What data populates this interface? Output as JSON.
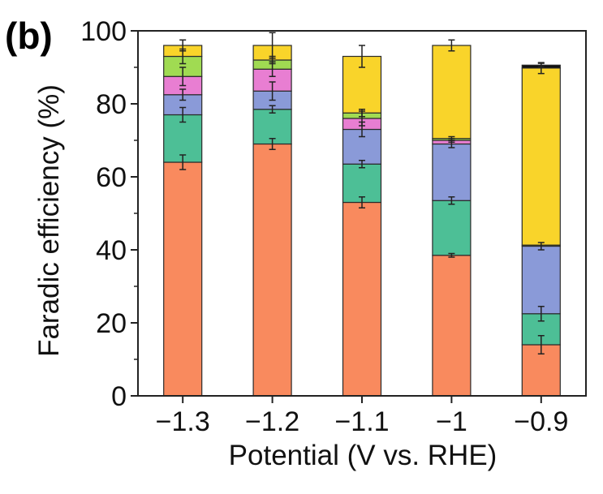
{
  "panel_label": "(b)",
  "chart_data": {
    "type": "bar",
    "stacked": true,
    "xlabel": "Potential (V vs. RHE)",
    "ylabel": "Faradic efficiency (%)",
    "ylim": [
      0,
      100
    ],
    "yticks": [
      0,
      20,
      40,
      60,
      80,
      100
    ],
    "categories": [
      "−1.3",
      "−1.2",
      "−1.1",
      "−1",
      "−0.9"
    ],
    "series": [
      {
        "color": "#f98a5e",
        "values": [
          64,
          69,
          53,
          38.5,
          14
        ],
        "errors": [
          2,
          1.5,
          1.5,
          0.5,
          2.5
        ]
      },
      {
        "color": "#4dbf96",
        "values": [
          13,
          9.5,
          10.5,
          15,
          8.5
        ],
        "errors": [
          2,
          1,
          1,
          1,
          2
        ]
      },
      {
        "color": "#8a9ad8",
        "values": [
          5.5,
          5,
          9.5,
          15.5,
          18.5
        ],
        "errors": [
          1.5,
          2.5,
          2,
          1,
          1
        ]
      },
      {
        "color": "#e87ed2",
        "values": [
          5,
          6,
          3,
          1,
          0
        ],
        "errors": [
          2.5,
          2,
          2,
          0.5,
          0
        ]
      },
      {
        "color": "#a0db52",
        "values": [
          5.5,
          2.5,
          1.5,
          0.5,
          0.3
        ],
        "errors": [
          2,
          1,
          1,
          0.5,
          0
        ]
      },
      {
        "color": "#f9d42a",
        "values": [
          3,
          4,
          15.5,
          25.5,
          48.5
        ],
        "errors": [
          1.5,
          3.5,
          3,
          1.5,
          1.5
        ]
      },
      {
        "color": "#111111",
        "values": [
          0,
          0,
          0,
          0,
          0.8
        ],
        "errors": [
          0,
          0,
          0,
          0,
          0.5
        ]
      }
    ],
    "grid": false,
    "legend": "none"
  }
}
